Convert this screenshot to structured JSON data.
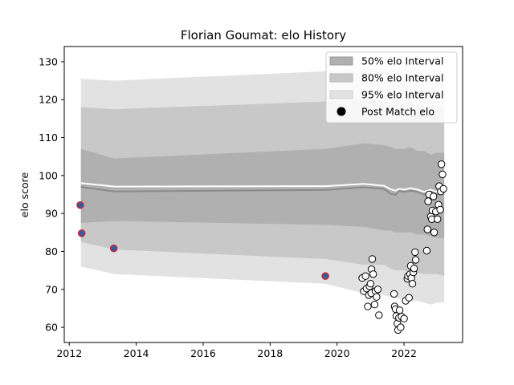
{
  "chart_data": {
    "type": "area",
    "title": "Florian Goumat: elo History",
    "xlabel": "",
    "ylabel": "elo score",
    "xlim": [
      2011.85,
      2023.75
    ],
    "ylim": [
      56,
      134
    ],
    "xticks": [
      2012,
      2014,
      2016,
      2018,
      2020,
      2022
    ],
    "xtick_labels": [
      "2012",
      "2014",
      "2016",
      "2018",
      "2020",
      "2022"
    ],
    "yticks": [
      60,
      70,
      80,
      90,
      100,
      110,
      120,
      130
    ],
    "ytick_labels": [
      "60",
      "70",
      "80",
      "90",
      "100",
      "110",
      "120",
      "130"
    ],
    "grid": false,
    "legend_position": "top-right",
    "colors": {
      "band50": "#b0b0b0",
      "band80": "#c8c8c8",
      "band95": "#e2e2e2",
      "mean_line": "#8a8a8a",
      "median_line": "#ffffff",
      "early_point_fill": "#3a5a9c",
      "early_point_edge": "#d9262c",
      "point_fill": "#ffffff",
      "point_edge": "#000000"
    },
    "legend": [
      {
        "label": "50% elo Interval",
        "kind": "band50"
      },
      {
        "label": "80% elo Interval",
        "kind": "band80"
      },
      {
        "label": "95% elo Interval",
        "kind": "band95"
      },
      {
        "label": "Post Match elo",
        "kind": "marker"
      }
    ],
    "bands": {
      "x": [
        2012.35,
        2013.35,
        2019.65,
        2020.8,
        2021.4,
        2021.6,
        2021.75,
        2021.85,
        2022.0,
        2022.2,
        2022.4,
        2022.6,
        2022.8,
        2023.0,
        2023.2
      ],
      "p95_upper": [
        125.5,
        125.0,
        127.5,
        128.5,
        127.5,
        128.0,
        127.5,
        128.0,
        127.0,
        128.5,
        127.5,
        128.0,
        127.0,
        128.0,
        127.5
      ],
      "p95_lower": [
        76.0,
        74.0,
        71.5,
        69.0,
        68.5,
        68.0,
        68.0,
        67.5,
        67.5,
        67.0,
        67.0,
        66.5,
        66.0,
        66.5,
        66.5
      ],
      "p80_upper": [
        118.0,
        117.5,
        119.5,
        120.0,
        119.5,
        119.0,
        119.0,
        119.5,
        119.0,
        119.5,
        118.5,
        118.5,
        118.0,
        118.5,
        118.0
      ],
      "p80_lower": [
        82.5,
        80.5,
        78.0,
        76.5,
        76.5,
        75.5,
        75.0,
        75.0,
        75.0,
        74.5,
        74.5,
        74.0,
        74.0,
        74.0,
        73.5
      ],
      "p50_upper": [
        107.0,
        104.5,
        107.0,
        108.5,
        108.0,
        107.5,
        107.0,
        107.0,
        107.0,
        107.5,
        106.5,
        106.5,
        105.5,
        106.0,
        106.0
      ],
      "p50_lower": [
        87.5,
        88.0,
        87.0,
        86.5,
        85.5,
        85.5,
        85.0,
        85.0,
        85.0,
        85.0,
        84.5,
        84.5,
        84.0,
        83.5,
        83.5
      ],
      "mean": [
        97.0,
        95.8,
        96.2,
        96.9,
        96.5,
        95.2,
        94.9,
        95.9,
        95.7,
        96.0,
        95.7,
        95.0,
        95.8,
        95.0,
        95.3
      ],
      "median": [
        98.0,
        97.1,
        97.2,
        97.8,
        97.3,
        96.4,
        96.0,
        96.5,
        96.3,
        96.7,
        96.3,
        95.7,
        96.3,
        95.6,
        95.8
      ]
    },
    "early_points": {
      "x": [
        2012.33,
        2012.37,
        2013.33,
        2019.65
      ],
      "y": [
        92.2,
        84.8,
        80.8,
        73.5
      ]
    },
    "points": {
      "x": [
        2020.75,
        2020.8,
        2020.85,
        2020.88,
        2020.92,
        2020.95,
        2020.97,
        2021.0,
        2021.02,
        2021.03,
        2021.05,
        2021.08,
        2021.12,
        2021.15,
        2021.18,
        2021.22,
        2021.25,
        2021.7,
        2021.72,
        2021.75,
        2021.77,
        2021.8,
        2021.82,
        2021.85,
        2021.87,
        2021.9,
        2021.93,
        2022.0,
        2022.05,
        2022.1,
        2022.12,
        2022.15,
        2022.18,
        2022.2,
        2022.22,
        2022.25,
        2022.28,
        2022.3,
        2022.33,
        2022.35,
        2022.68,
        2022.7,
        2022.72,
        2022.75,
        2022.8,
        2022.83,
        2022.85,
        2022.88,
        2022.9,
        2022.95,
        2023.0,
        2023.03,
        2023.05,
        2023.08,
        2023.1,
        2023.12,
        2023.15,
        2023.18
      ],
      "y": [
        73.0,
        69.5,
        73.5,
        70.2,
        65.5,
        68.5,
        70.8,
        71.5,
        69.0,
        75.3,
        78.0,
        74.0,
        66.0,
        69.5,
        68.0,
        70.0,
        63.2,
        68.8,
        65.5,
        64.8,
        63.0,
        61.0,
        59.3,
        62.5,
        64.5,
        60.0,
        62.8,
        62.3,
        67.0,
        72.8,
        73.5,
        67.8,
        74.0,
        76.2,
        73.0,
        71.5,
        74.5,
        75.5,
        79.8,
        77.8,
        80.2,
        85.8,
        93.2,
        95.0,
        89.2,
        88.5,
        90.8,
        94.5,
        85.0,
        90.5,
        88.5,
        92.3,
        97.2,
        91.0,
        95.8,
        103.0,
        100.3,
        96.5
      ]
    }
  }
}
